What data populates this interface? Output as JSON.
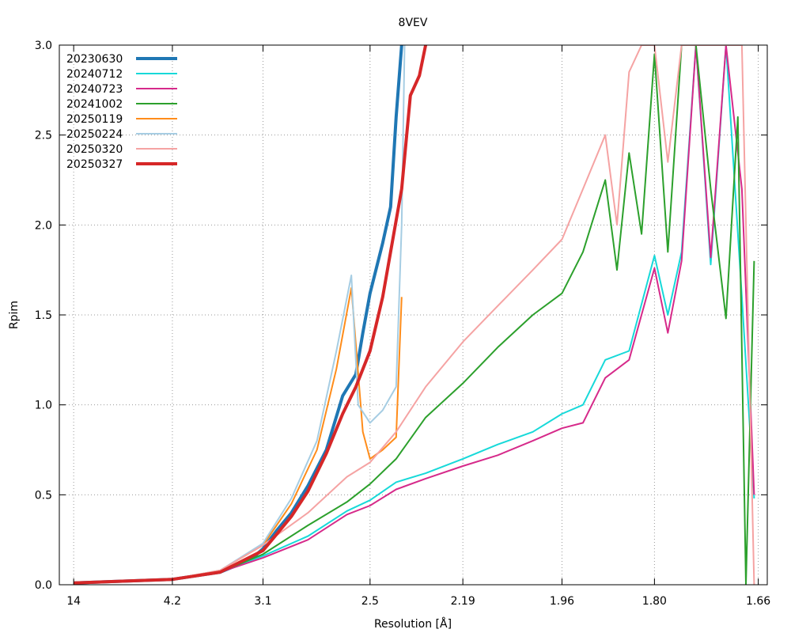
{
  "chart_data": {
    "type": "line",
    "title": "8VEV",
    "xlabel": "Resolution [Å]",
    "ylabel": "Rpim",
    "ylim": [
      0,
      3
    ],
    "y_ticks": [
      "0.0",
      "0.5",
      "1.0",
      "1.5",
      "2.0",
      "2.5",
      "3.0"
    ],
    "x_axis": "reciprocal resolution (1/d^2) scale, shown in Å",
    "x_ticks": [
      "14",
      "4.2",
      "3.1",
      "2.5",
      "2.19",
      "1.96",
      "1.80",
      "1.66"
    ],
    "grid": true,
    "legend_position": "top-left",
    "series": [
      {
        "name": "20230630",
        "color": "#1f77b4",
        "width": 4,
        "x": [
          14,
          4.2,
          3.5,
          3.2,
          3.1,
          3.0,
          2.9,
          2.8,
          2.7,
          2.62,
          2.56,
          2.53,
          2.5,
          2.45,
          2.42,
          2.4,
          2.38
        ],
        "y": [
          0.01,
          0.03,
          0.07,
          0.14,
          0.2,
          0.3,
          0.4,
          0.55,
          0.75,
          1.05,
          1.17,
          1.4,
          1.62,
          1.9,
          2.1,
          2.6,
          3.0
        ]
      },
      {
        "name": "20240712",
        "color": "#17d9d9",
        "width": 2,
        "x": [
          14,
          4.2,
          3.5,
          3.1,
          2.8,
          2.6,
          2.5,
          2.4,
          2.3,
          2.19,
          2.1,
          2.02,
          1.96,
          1.92,
          1.88,
          1.84,
          1.8,
          1.78,
          1.76,
          1.74,
          1.72,
          1.7,
          1.68,
          1.665
        ],
        "y": [
          0.01,
          0.03,
          0.07,
          0.16,
          0.27,
          0.41,
          0.47,
          0.57,
          0.62,
          0.7,
          0.78,
          0.85,
          0.95,
          1.0,
          1.25,
          1.3,
          1.83,
          1.5,
          1.85,
          3.0,
          1.78,
          3.0,
          1.6,
          0.48
        ]
      },
      {
        "name": "20240723",
        "color": "#d62a8a",
        "width": 2,
        "x": [
          14,
          4.2,
          3.5,
          3.1,
          2.8,
          2.6,
          2.5,
          2.4,
          2.3,
          2.19,
          2.1,
          2.02,
          1.96,
          1.92,
          1.88,
          1.84,
          1.8,
          1.78,
          1.76,
          1.74,
          1.72,
          1.7,
          1.68,
          1.665
        ],
        "y": [
          0.01,
          0.03,
          0.07,
          0.15,
          0.25,
          0.39,
          0.44,
          0.53,
          0.59,
          0.66,
          0.72,
          0.8,
          0.87,
          0.9,
          1.15,
          1.25,
          1.76,
          1.4,
          1.8,
          3.0,
          1.82,
          3.0,
          2.2,
          0.5
        ]
      },
      {
        "name": "20241002",
        "color": "#2ca02c",
        "width": 2,
        "x": [
          14,
          4.2,
          3.5,
          3.1,
          2.8,
          2.6,
          2.5,
          2.4,
          2.3,
          2.19,
          2.1,
          2.02,
          1.96,
          1.92,
          1.88,
          1.86,
          1.84,
          1.82,
          1.8,
          1.78,
          1.76,
          1.74,
          1.72,
          1.7,
          1.685,
          1.675,
          1.665
        ],
        "y": [
          0.01,
          0.03,
          0.07,
          0.17,
          0.33,
          0.46,
          0.56,
          0.7,
          0.93,
          1.12,
          1.32,
          1.5,
          1.62,
          1.85,
          2.25,
          1.75,
          2.4,
          1.95,
          2.95,
          1.85,
          3.0,
          3.0,
          2.2,
          1.48,
          2.6,
          0.0,
          1.8
        ]
      },
      {
        "name": "20250119",
        "color": "#ff8c1a",
        "width": 2,
        "x": [
          14,
          4.2,
          3.5,
          3.1,
          2.9,
          2.75,
          2.65,
          2.58,
          2.53,
          2.5,
          2.45,
          2.4,
          2.38
        ],
        "y": [
          0.01,
          0.03,
          0.08,
          0.22,
          0.45,
          0.75,
          1.2,
          1.65,
          0.85,
          0.7,
          0.75,
          0.82,
          1.6
        ]
      },
      {
        "name": "20250224",
        "color": "#a6cde3",
        "width": 2,
        "x": [
          14,
          4.2,
          3.5,
          3.1,
          2.9,
          2.75,
          2.65,
          2.58,
          2.55,
          2.5,
          2.45,
          2.4,
          2.38,
          2.37
        ],
        "y": [
          0.01,
          0.03,
          0.08,
          0.23,
          0.48,
          0.8,
          1.3,
          1.72,
          1.0,
          0.9,
          0.97,
          1.1,
          2.0,
          3.0
        ]
      },
      {
        "name": "20250320",
        "color": "#f5a3a3",
        "width": 2,
        "x": [
          14,
          4.2,
          3.5,
          3.1,
          2.8,
          2.6,
          2.5,
          2.4,
          2.3,
          2.19,
          2.1,
          2.02,
          1.96,
          1.92,
          1.88,
          1.86,
          1.84,
          1.82,
          1.8,
          1.78,
          1.76,
          1.74,
          1.72,
          1.7,
          1.68,
          1.665
        ],
        "y": [
          0.01,
          0.03,
          0.08,
          0.22,
          0.4,
          0.6,
          0.68,
          0.85,
          1.1,
          1.35,
          1.55,
          1.75,
          1.92,
          2.2,
          2.5,
          2.0,
          2.85,
          3.0,
          3.0,
          2.35,
          3.0,
          3.0,
          3.0,
          3.0,
          3.0,
          0.0
        ]
      },
      {
        "name": "20250327",
        "color": "#d62728",
        "width": 4,
        "x": [
          14,
          4.2,
          3.5,
          3.1,
          3.0,
          2.9,
          2.8,
          2.7,
          2.62,
          2.56,
          2.5,
          2.45,
          2.42,
          2.38,
          2.35,
          2.32,
          2.3
        ],
        "y": [
          0.01,
          0.03,
          0.07,
          0.19,
          0.28,
          0.38,
          0.52,
          0.73,
          0.95,
          1.1,
          1.3,
          1.6,
          1.85,
          2.2,
          2.72,
          2.83,
          3.0
        ]
      }
    ]
  }
}
